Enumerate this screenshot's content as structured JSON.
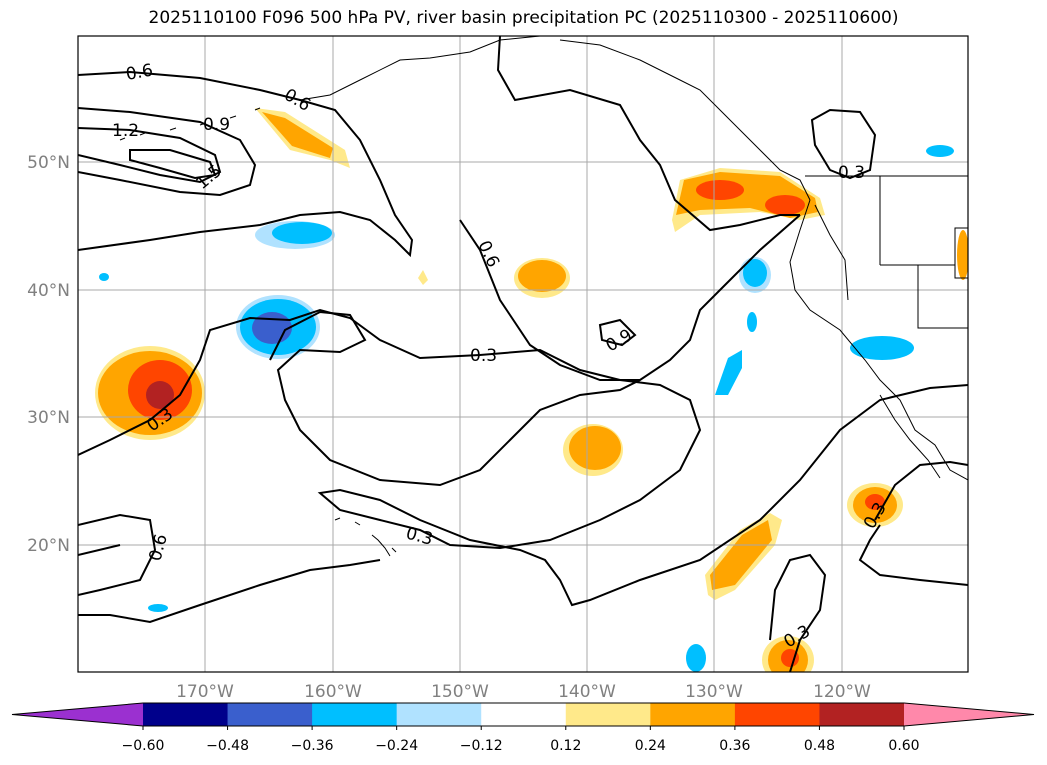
{
  "title": "2025110100 F096 500 hPa PV, river basin precipitation PC (2025110300 - 2025110600)",
  "map": {
    "lon_labels": [
      "170°W",
      "160°W",
      "150°W",
      "140°W",
      "130°W",
      "120°W"
    ],
    "lat_labels": [
      "50°N",
      "40°N",
      "30°N",
      "20°N"
    ],
    "contour_labels": [
      "0.6",
      "1.2",
      "0.9",
      "1.5",
      "0.6",
      "0.6",
      "0.3",
      "0.9",
      "0.3",
      "0.3",
      "0.6",
      "0.3",
      "0.3",
      "0.3"
    ],
    "gridline_color": "#a8a8a8"
  },
  "colorbar": {
    "ticks": [
      "−0.60",
      "−0.48",
      "−0.36",
      "−0.24",
      "−0.12",
      "0.12",
      "0.24",
      "0.36",
      "0.48",
      "0.60"
    ],
    "colors": [
      "#9b30d0",
      "#00008b",
      "#3a5fcd",
      "#00bfff",
      "#b0e2ff",
      "#ffffff",
      "#ffe98a",
      "#ffa500",
      "#ff4500",
      "#b22222",
      "#ff88aa"
    ]
  }
}
